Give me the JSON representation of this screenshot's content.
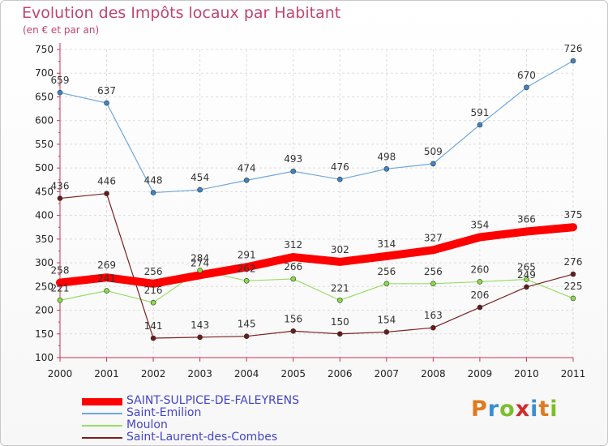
{
  "header": {
    "title": "Evolution des Impôts locaux par Habitant",
    "subtitle": "(en € et par an)"
  },
  "logo": {
    "text": "Proxiti",
    "colors": [
      "#e07a1f",
      "#3a8fd0",
      "#7bbf2a",
      "#d12c2c",
      "#3a8fd0",
      "#e07a1f",
      "#7bbf2a"
    ]
  },
  "chart_data": {
    "type": "line",
    "title": "Evolution des Impôts locaux par Habitant",
    "subtitle": "(en € et par an)",
    "x": [
      "2000",
      "2001",
      "2002",
      "2003",
      "2004",
      "2005",
      "2006",
      "2007",
      "2008",
      "2009",
      "2010",
      "2011"
    ],
    "ylim": [
      100,
      750
    ],
    "yticks": [
      100,
      150,
      200,
      250,
      300,
      350,
      400,
      450,
      500,
      550,
      600,
      650,
      700,
      750
    ],
    "grid": true,
    "legend": "bottom-left",
    "series": [
      {
        "name": "SAINT-SULPICE-DE-FALEYRENS",
        "color": "#ff0000",
        "values": [
          258,
          269,
          256,
          274,
          291,
          312,
          302,
          314,
          327,
          354,
          366,
          375
        ]
      },
      {
        "name": "Saint-Emilion",
        "color": "#6fa8dc",
        "values": [
          659,
          637,
          448,
          454,
          474,
          493,
          476,
          498,
          509,
          591,
          670,
          726
        ]
      },
      {
        "name": "Moulon",
        "color": "#99dd66",
        "values": [
          221,
          241,
          216,
          284,
          262,
          266,
          221,
          256,
          256,
          260,
          265,
          225
        ]
      },
      {
        "name": "Saint-Laurent-des-Combes",
        "color": "#7a2020",
        "values": [
          436,
          446,
          141,
          143,
          145,
          156,
          150,
          154,
          163,
          206,
          249,
          276
        ]
      }
    ]
  }
}
